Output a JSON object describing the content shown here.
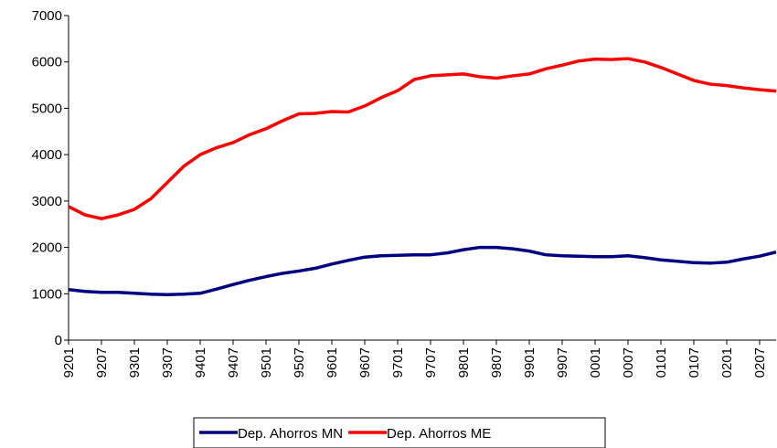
{
  "chart_data": {
    "type": "line",
    "categories": [
      "9201",
      null,
      "9207",
      null,
      "9301",
      null,
      "9307",
      null,
      "9401",
      null,
      "9407",
      null,
      "9501",
      null,
      "9507",
      null,
      "9601",
      null,
      "9607",
      null,
      "9701",
      null,
      "9707",
      null,
      "9801",
      null,
      "9807",
      null,
      "9901",
      null,
      "9907",
      null,
      "0001",
      null,
      "0007",
      null,
      "0101",
      null,
      "0107",
      null,
      "0201",
      null,
      "0207",
      null
    ],
    "series": [
      {
        "name": "Dep. Ahorros MN",
        "color": "#000080",
        "values": [
          1090,
          1050,
          1030,
          1030,
          1010,
          990,
          980,
          990,
          1010,
          1100,
          1200,
          1290,
          1370,
          1440,
          1490,
          1550,
          1640,
          1720,
          1790,
          1820,
          1830,
          1840,
          1840,
          1880,
          1950,
          2000,
          2000,
          1970,
          1920,
          1840,
          1820,
          1810,
          1800,
          1800,
          1820,
          1780,
          1730,
          1700,
          1670,
          1660,
          1680,
          1750,
          1810,
          1900
        ]
      },
      {
        "name": "Dep. Ahorros ME",
        "color": "#ff0000",
        "values": [
          2880,
          2700,
          2620,
          2700,
          2820,
          3050,
          3400,
          3750,
          4000,
          4150,
          4260,
          4430,
          4560,
          4730,
          4880,
          4890,
          4930,
          4920,
          5050,
          5230,
          5380,
          5620,
          5700,
          5720,
          5740,
          5680,
          5650,
          5700,
          5740,
          5850,
          5930,
          6020,
          6060,
          6050,
          6070,
          6000,
          5880,
          5740,
          5600,
          5520,
          5490,
          5440,
          5400,
          5370
        ]
      }
    ],
    "ylim": [
      0,
      7000
    ],
    "yticks": [
      0,
      1000,
      2000,
      3000,
      4000,
      5000,
      6000,
      7000
    ],
    "grid": false,
    "legend": "bottom"
  }
}
